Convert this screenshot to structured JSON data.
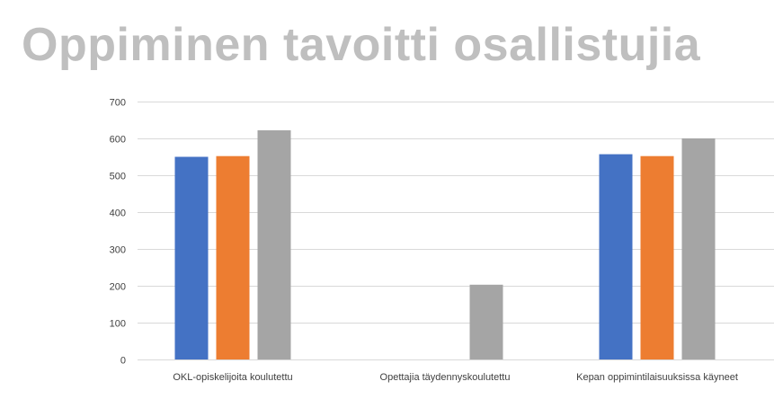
{
  "title": "Oppiminen tavoitti osallistujia",
  "chart_data": {
    "type": "bar",
    "categories": [
      "OKL-opiskelijoita koulutettu",
      "Opettajia täydennyskoulutettu",
      "Kepan oppimintilaisuuksissa käyneet"
    ],
    "series": [
      {
        "values": [
          550,
          null,
          557
        ],
        "color": "#4472c4"
      },
      {
        "values": [
          552,
          null,
          552
        ],
        "color": "#ed7d31"
      },
      {
        "values": [
          622,
          203,
          600
        ],
        "color": "#a5a5a5"
      }
    ],
    "ylim": [
      0,
      700
    ],
    "yticks": [
      0,
      100,
      200,
      300,
      400,
      500,
      600,
      700
    ],
    "grid": true,
    "gridColor": "#d9d9d9"
  }
}
